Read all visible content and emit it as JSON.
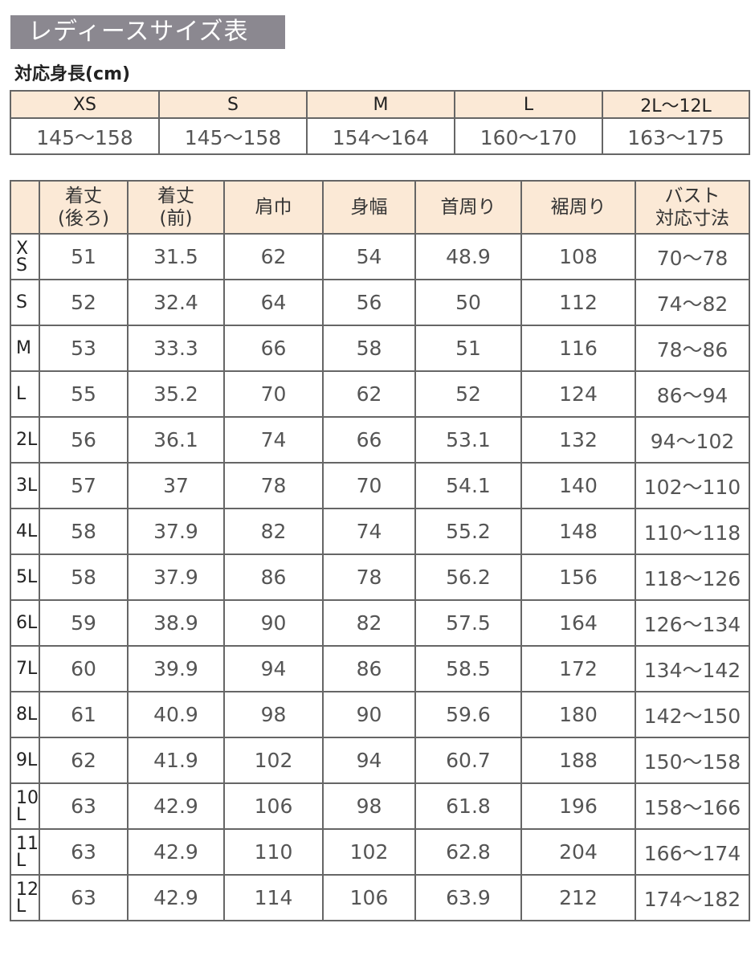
{
  "title": "レディースサイズ表",
  "height_table": {
    "caption": "対応身長(cm)",
    "sizes": [
      "XS",
      "S",
      "M",
      "L",
      "2L〜12L"
    ],
    "heights": [
      "145〜158",
      "145〜158",
      "154〜164",
      "160〜170",
      "163〜175"
    ]
  },
  "size_table": {
    "headers": [
      "",
      "着丈\n(後ろ)",
      "着丈\n(前)",
      "肩巾",
      "身幅",
      "首周り",
      "裾周り",
      "バスト\n対応寸法"
    ],
    "rows": [
      [
        "XS",
        "51",
        "31.5",
        "62",
        "54",
        "48.9",
        "108",
        "70〜78"
      ],
      [
        "S",
        "52",
        "32.4",
        "64",
        "56",
        "50",
        "112",
        "74〜82"
      ],
      [
        "M",
        "53",
        "33.3",
        "66",
        "58",
        "51",
        "116",
        "78〜86"
      ],
      [
        "L",
        "55",
        "35.2",
        "70",
        "62",
        "52",
        "124",
        "86〜94"
      ],
      [
        "2L",
        "56",
        "36.1",
        "74",
        "66",
        "53.1",
        "132",
        "94〜102"
      ],
      [
        "3L",
        "57",
        "37",
        "78",
        "70",
        "54.1",
        "140",
        "102〜110"
      ],
      [
        "4L",
        "58",
        "37.9",
        "82",
        "74",
        "55.2",
        "148",
        "110〜118"
      ],
      [
        "5L",
        "58",
        "37.9",
        "86",
        "78",
        "56.2",
        "156",
        "118〜126"
      ],
      [
        "6L",
        "59",
        "38.9",
        "90",
        "82",
        "57.5",
        "164",
        "126〜134"
      ],
      [
        "7L",
        "60",
        "39.9",
        "94",
        "86",
        "58.5",
        "172",
        "134〜142"
      ],
      [
        "8L",
        "61",
        "40.9",
        "98",
        "90",
        "59.6",
        "180",
        "142〜150"
      ],
      [
        "9L",
        "62",
        "41.9",
        "102",
        "94",
        "60.7",
        "188",
        "150〜158"
      ],
      [
        "10L",
        "63",
        "42.9",
        "106",
        "98",
        "61.8",
        "196",
        "158〜166"
      ],
      [
        "11L",
        "63",
        "42.9",
        "110",
        "102",
        "62.8",
        "204",
        "166〜174"
      ],
      [
        "12L",
        "63",
        "42.9",
        "114",
        "106",
        "63.9",
        "212",
        "174〜182"
      ]
    ]
  },
  "colors": {
    "title_bg": "#8b8890",
    "header_bg": "#fbe9d6",
    "border": "#666666"
  }
}
